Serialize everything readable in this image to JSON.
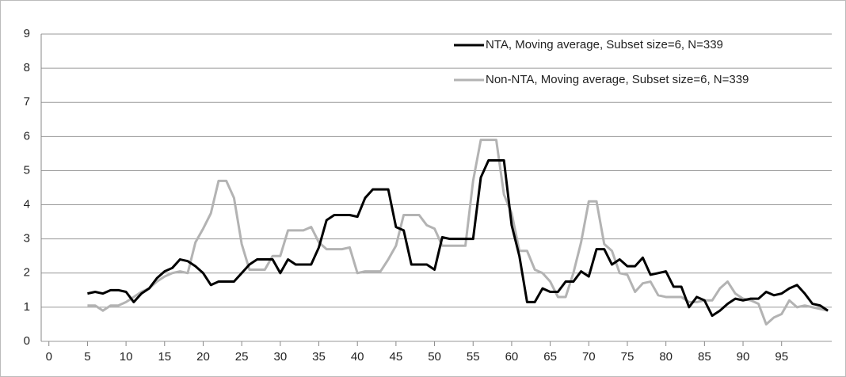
{
  "chart_data": {
    "type": "line",
    "x": [
      5,
      6,
      7,
      8,
      9,
      10,
      11,
      12,
      13,
      14,
      15,
      16,
      17,
      18,
      19,
      20,
      21,
      22,
      23,
      24,
      25,
      26,
      27,
      28,
      29,
      30,
      31,
      32,
      33,
      34,
      35,
      36,
      37,
      38,
      39,
      40,
      41,
      42,
      43,
      44,
      45,
      46,
      47,
      48,
      49,
      50,
      51,
      52,
      53,
      54,
      55,
      56,
      57,
      58,
      59,
      60,
      61,
      62,
      63,
      64,
      65,
      66,
      67,
      68,
      69,
      70,
      71,
      72,
      73,
      74,
      75,
      76,
      77,
      78,
      79,
      80,
      81,
      82,
      83,
      84,
      85,
      86,
      87,
      88,
      89,
      90,
      91,
      92,
      93,
      94,
      95,
      96,
      97,
      98,
      99,
      100,
      101
    ],
    "series": [
      {
        "name": "NTA, Moving average, Subset size=6, N=339",
        "color": "#000000",
        "values": [
          1.4,
          1.45,
          1.4,
          1.5,
          1.5,
          1.45,
          1.15,
          1.4,
          1.55,
          1.85,
          2.05,
          2.15,
          2.4,
          2.35,
          2.2,
          2.0,
          1.65,
          1.75,
          1.75,
          1.75,
          2.0,
          2.25,
          2.4,
          2.4,
          2.4,
          2.0,
          2.4,
          2.25,
          2.25,
          2.25,
          2.75,
          3.55,
          3.7,
          3.7,
          3.7,
          3.65,
          4.2,
          4.45,
          4.45,
          4.45,
          3.35,
          3.25,
          2.25,
          2.25,
          2.25,
          2.1,
          3.05,
          3.0,
          3.0,
          3.0,
          3.0,
          4.8,
          5.3,
          5.3,
          5.3,
          3.4,
          2.5,
          1.15,
          1.15,
          1.55,
          1.45,
          1.45,
          1.75,
          1.75,
          2.05,
          1.9,
          2.7,
          2.7,
          2.25,
          2.4,
          2.2,
          2.2,
          2.45,
          1.95,
          2.0,
          2.05,
          1.6,
          1.6,
          1.0,
          1.3,
          1.2,
          0.75,
          0.9,
          1.1,
          1.25,
          1.2,
          1.25,
          1.25,
          1.45,
          1.35,
          1.4,
          1.55,
          1.65,
          1.4,
          1.1,
          1.05,
          0.9
        ]
      },
      {
        "name": "Non-NTA, Moving average, Subset size=6, N=339",
        "color": "#b3b3b3",
        "values": [
          1.05,
          1.05,
          0.9,
          1.05,
          1.05,
          1.15,
          1.3,
          1.45,
          1.55,
          1.75,
          1.9,
          2.0,
          2.05,
          2.0,
          2.9,
          3.3,
          3.75,
          4.7,
          4.7,
          4.2,
          2.85,
          2.1,
          2.1,
          2.1,
          2.5,
          2.5,
          3.25,
          3.25,
          3.25,
          3.35,
          2.9,
          2.7,
          2.7,
          2.7,
          2.75,
          2.0,
          2.05,
          2.05,
          2.05,
          2.4,
          2.8,
          3.7,
          3.7,
          3.7,
          3.4,
          3.3,
          2.8,
          2.8,
          2.8,
          2.8,
          4.7,
          5.9,
          5.9,
          5.9,
          4.3,
          3.75,
          2.65,
          2.65,
          2.1,
          2.0,
          1.75,
          1.3,
          1.3,
          2.0,
          2.9,
          4.1,
          4.1,
          2.85,
          2.65,
          2.0,
          1.95,
          1.45,
          1.7,
          1.75,
          1.35,
          1.3,
          1.3,
          1.3,
          1.15,
          1.15,
          1.2,
          1.2,
          1.55,
          1.75,
          1.4,
          1.25,
          1.2,
          1.1,
          0.5,
          0.7,
          0.8,
          1.2,
          1.0,
          1.05,
          1.0,
          0.95,
          0.9
        ]
      }
    ],
    "xlim": [
      -1,
      101.5
    ],
    "xticks": [
      0,
      5,
      10,
      15,
      20,
      25,
      30,
      35,
      40,
      45,
      50,
      55,
      60,
      65,
      70,
      75,
      80,
      85,
      90,
      95
    ],
    "ylim": [
      0,
      9
    ],
    "yticks": [
      0,
      1,
      2,
      3,
      4,
      5,
      6,
      7,
      8,
      9
    ],
    "grid": true,
    "legend": "upper right"
  }
}
